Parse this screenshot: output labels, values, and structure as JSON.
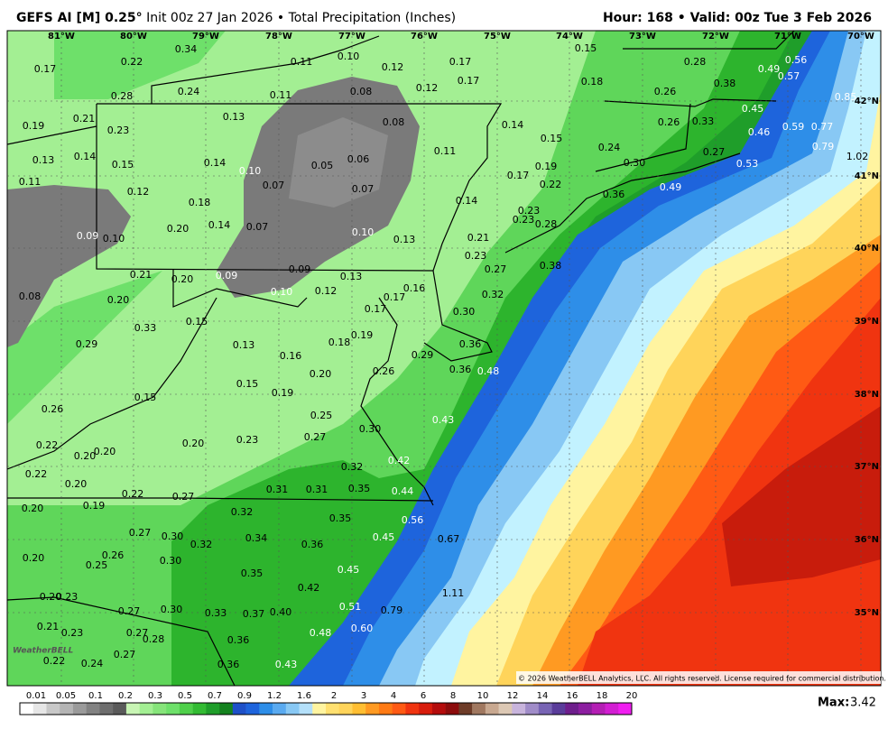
{
  "header": {
    "title": "GEFS AI [M] 0.25°",
    "subtitle": "Init 00z 27 Jan 2026 • Total Precipitation (Inches)",
    "valid": "Hour: 168 • Valid: 00z Tue 3 Feb 2026"
  },
  "map": {
    "longitude_labels": [
      "81°W",
      "80°W",
      "79°W",
      "78°W",
      "77°W",
      "76°W",
      "75°W",
      "74°W",
      "73°W",
      "72°W",
      "71°W",
      "70°W"
    ],
    "latitude_labels": [
      "42°N",
      "41°N",
      "40°N",
      "39°N",
      "38°N",
      "37°N",
      "36°N",
      "35°N"
    ],
    "values": [
      "0.17",
      "0.22",
      "0.34",
      "0.11",
      "0.10",
      "0.12",
      "0.17",
      "0.15",
      "0.28",
      "0.49",
      "0.56",
      "0.57",
      "0.28",
      "0.24",
      "0.11",
      "0.08",
      "0.12",
      "0.17",
      "0.18",
      "0.26",
      "0.38",
      "0.85",
      "0.21",
      "0.19",
      "0.23",
      "0.13",
      "0.08",
      "0.14",
      "0.26",
      "0.33",
      "0.45",
      "0.46",
      "0.59",
      "0.77",
      "0.13",
      "0.14",
      "0.15",
      "0.14",
      "0.10",
      "0.05",
      "0.06",
      "0.11",
      "0.15",
      "0.24",
      "0.30",
      "0.27",
      "0.53",
      "0.79",
      "1.02",
      "0.11",
      "0.12",
      "0.07",
      "0.07",
      "0.17",
      "0.19",
      "0.22",
      "0.49",
      "0.36",
      "0.18",
      "0.14",
      "0.23",
      "0.23",
      "0.28",
      "0.09",
      "0.10",
      "0.20",
      "0.14",
      "0.07",
      "0.10",
      "0.13",
      "0.21",
      "0.23",
      "0.27",
      "0.38",
      "0.21",
      "0.20",
      "0.09",
      "0.09",
      "0.13",
      "0.10",
      "0.12",
      "0.08",
      "0.20",
      "0.17",
      "0.16",
      "0.32",
      "0.17",
      "0.30",
      "0.15",
      "0.33",
      "0.19",
      "0.18",
      "0.29",
      "0.13",
      "0.36",
      "0.16",
      "0.29",
      "0.36",
      "0.48",
      "0.20",
      "0.26",
      "0.15",
      "0.19",
      "0.15",
      "0.26",
      "0.25",
      "0.43",
      "0.30",
      "0.27",
      "0.23",
      "0.20",
      "0.22",
      "0.20",
      "0.20",
      "0.42",
      "0.32",
      "0.22",
      "0.20",
      "0.31",
      "0.31",
      "0.35",
      "0.44",
      "0.22",
      "0.27",
      "0.19",
      "0.20",
      "0.32",
      "0.35",
      "0.56",
      "0.27",
      "0.30",
      "0.34",
      "0.32",
      "0.36",
      "0.45",
      "0.67",
      "0.26",
      "0.20",
      "0.25",
      "0.30",
      "0.35",
      "0.45",
      "0.42",
      "1.11",
      "0.20",
      "0.23",
      "0.51",
      "0.79",
      "0.27",
      "0.30",
      "0.33",
      "0.37",
      "0.40",
      "0.21",
      "0.23",
      "0.27",
      "0.28",
      "0.60",
      "0.36",
      "0.48",
      "0.27",
      "0.22",
      "0.24",
      "0.36",
      "0.43"
    ],
    "logo": "WeatherBELL",
    "copyright": "© 2026 WeatherBELL Analytics, LLC. All rights reserved. License required for commercial distribution."
  },
  "colorbar": {
    "labels": [
      "0.01",
      "0.05",
      "0.1",
      "0.2",
      "0.3",
      "0.5",
      "0.7",
      "0.9",
      "1.2",
      "1.6",
      "2",
      "3",
      "4",
      "6",
      "8",
      "10",
      "12",
      "14",
      "16",
      "18",
      "20"
    ]
  },
  "footer": {
    "max_label": "Max:",
    "max": "3.42"
  }
}
